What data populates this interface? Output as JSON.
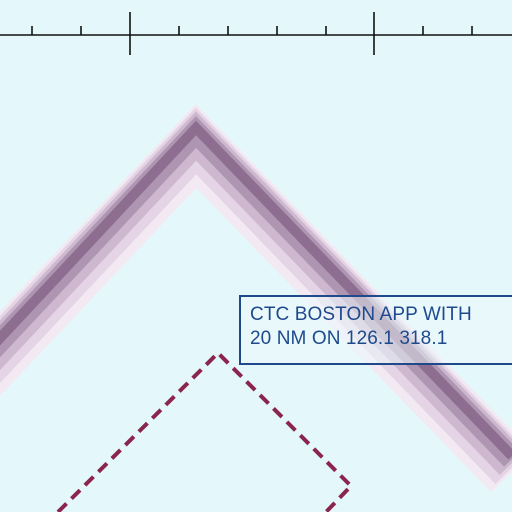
{
  "map": {
    "background_color": "#E4F7FA",
    "airspace_boundary_color": "#8E6E90",
    "dashed_boundary_color": "#8A2550",
    "tick_scale_color": "#111111",
    "callout": {
      "line1": "CTC BOSTON APP WITH",
      "line2": "20 NM ON 126.1 318.1",
      "text_color": "#1E4A8C",
      "border_color": "#1E4A8C"
    }
  }
}
